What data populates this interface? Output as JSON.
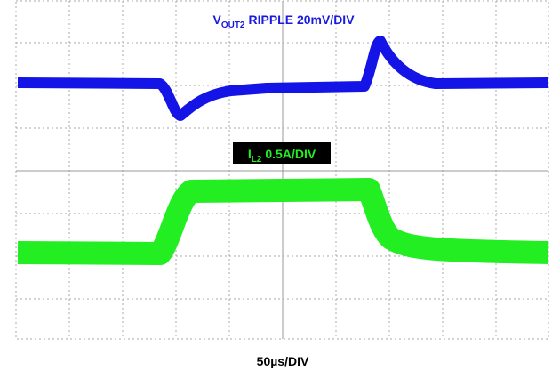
{
  "labels": {
    "vout": {
      "symbol": "V",
      "subscript": "OUT2",
      "scale": "RIPPLE 20mV/DIV"
    },
    "il": {
      "symbol": "I",
      "subscript": "L2",
      "scale": "0.5A/DIV"
    },
    "time": "50µs/DIV"
  }
}
